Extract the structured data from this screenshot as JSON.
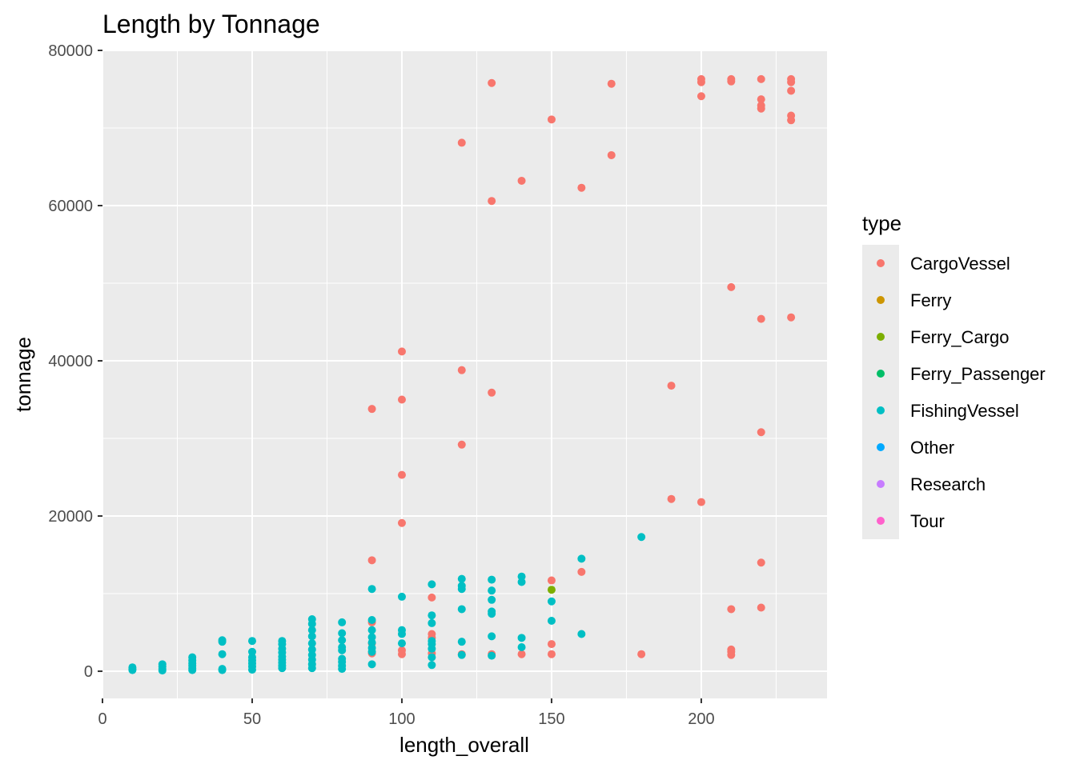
{
  "chart_data": {
    "type": "scatter",
    "title": "Length by Tonnage",
    "xlabel": "length_overall",
    "ylabel": "tonnage",
    "xlim": [
      0,
      242
    ],
    "ylim": [
      -3500,
      80000
    ],
    "x_ticks": [
      0,
      50,
      100,
      150,
      200
    ],
    "y_ticks": [
      0,
      20000,
      40000,
      60000,
      80000
    ],
    "x_tick_labels": [
      "0",
      "50",
      "100",
      "150",
      "200"
    ],
    "y_tick_labels": [
      "0",
      "20000",
      "40000",
      "60000",
      "80000"
    ],
    "grid": true,
    "legend": {
      "title": "type",
      "position": "right"
    },
    "series": [
      {
        "name": "CargoVessel",
        "color": "#F8766D",
        "points": [
          [
            90,
            33800
          ],
          [
            90,
            14300
          ],
          [
            90,
            6300
          ],
          [
            90,
            3600
          ],
          [
            90,
            2300
          ],
          [
            100,
            41200
          ],
          [
            100,
            35000
          ],
          [
            100,
            25300
          ],
          [
            100,
            19100
          ],
          [
            100,
            2700
          ],
          [
            100,
            2200
          ],
          [
            110,
            9500
          ],
          [
            110,
            4800
          ],
          [
            110,
            4300
          ],
          [
            110,
            2300
          ],
          [
            120,
            68100
          ],
          [
            120,
            38800
          ],
          [
            120,
            29200
          ],
          [
            120,
            2200
          ],
          [
            130,
            75800
          ],
          [
            130,
            60600
          ],
          [
            130,
            35900
          ],
          [
            130,
            2200
          ],
          [
            140,
            63200
          ],
          [
            140,
            2200
          ],
          [
            150,
            71100
          ],
          [
            150,
            11700
          ],
          [
            150,
            3500
          ],
          [
            150,
            2200
          ],
          [
            160,
            62300
          ],
          [
            160,
            12800
          ],
          [
            170,
            75700
          ],
          [
            170,
            66500
          ],
          [
            180,
            2200
          ],
          [
            190,
            36800
          ],
          [
            190,
            22200
          ],
          [
            200,
            76300
          ],
          [
            200,
            75900
          ],
          [
            200,
            74100
          ],
          [
            200,
            21800
          ],
          [
            210,
            76300
          ],
          [
            210,
            76000
          ],
          [
            210,
            49500
          ],
          [
            210,
            8000
          ],
          [
            210,
            2800
          ],
          [
            210,
            2500
          ],
          [
            210,
            2100
          ],
          [
            220,
            76300
          ],
          [
            220,
            73700
          ],
          [
            220,
            72900
          ],
          [
            220,
            72500
          ],
          [
            220,
            45400
          ],
          [
            220,
            30800
          ],
          [
            220,
            14000
          ],
          [
            220,
            8200
          ],
          [
            230,
            76300
          ],
          [
            230,
            75900
          ],
          [
            230,
            74800
          ],
          [
            230,
            71600
          ],
          [
            230,
            71000
          ],
          [
            230,
            45600
          ]
        ]
      },
      {
        "name": "Ferry",
        "color": "#CD9600",
        "points": []
      },
      {
        "name": "Ferry_Cargo",
        "color": "#7CAE00",
        "points": [
          [
            150,
            10500
          ]
        ]
      },
      {
        "name": "Ferry_Passenger",
        "color": "#00BE67",
        "points": []
      },
      {
        "name": "FishingVessel",
        "color": "#00BFC4",
        "points": [
          [
            10,
            500
          ],
          [
            10,
            300
          ],
          [
            10,
            150
          ],
          [
            20,
            900
          ],
          [
            20,
            600
          ],
          [
            20,
            300
          ],
          [
            20,
            100
          ],
          [
            30,
            1800
          ],
          [
            30,
            1400
          ],
          [
            30,
            1000
          ],
          [
            30,
            700
          ],
          [
            30,
            400
          ],
          [
            30,
            150
          ],
          [
            40,
            4000
          ],
          [
            40,
            3800
          ],
          [
            40,
            2200
          ],
          [
            40,
            300
          ],
          [
            40,
            150
          ],
          [
            50,
            3900
          ],
          [
            50,
            2500
          ],
          [
            50,
            1800
          ],
          [
            50,
            1400
          ],
          [
            50,
            1000
          ],
          [
            50,
            600
          ],
          [
            50,
            200
          ],
          [
            60,
            3900
          ],
          [
            60,
            3500
          ],
          [
            60,
            2900
          ],
          [
            60,
            2400
          ],
          [
            60,
            1900
          ],
          [
            60,
            1500
          ],
          [
            60,
            1100
          ],
          [
            60,
            700
          ],
          [
            60,
            400
          ],
          [
            70,
            6700
          ],
          [
            70,
            6100
          ],
          [
            70,
            5300
          ],
          [
            70,
            4500
          ],
          [
            70,
            3600
          ],
          [
            70,
            2800
          ],
          [
            70,
            2100
          ],
          [
            70,
            1500
          ],
          [
            70,
            900
          ],
          [
            70,
            400
          ],
          [
            80,
            6300
          ],
          [
            80,
            4900
          ],
          [
            80,
            4000
          ],
          [
            80,
            3100
          ],
          [
            80,
            2700
          ],
          [
            80,
            1600
          ],
          [
            80,
            1200
          ],
          [
            80,
            700
          ],
          [
            80,
            300
          ],
          [
            90,
            10600
          ],
          [
            90,
            6600
          ],
          [
            90,
            5300
          ],
          [
            90,
            4400
          ],
          [
            90,
            3700
          ],
          [
            90,
            3000
          ],
          [
            90,
            2500
          ],
          [
            90,
            900
          ],
          [
            100,
            9600
          ],
          [
            100,
            5300
          ],
          [
            100,
            4800
          ],
          [
            100,
            3600
          ],
          [
            110,
            11200
          ],
          [
            110,
            7200
          ],
          [
            110,
            6200
          ],
          [
            110,
            3900
          ],
          [
            110,
            3500
          ],
          [
            110,
            2900
          ],
          [
            110,
            1800
          ],
          [
            110,
            800
          ],
          [
            120,
            11900
          ],
          [
            120,
            11000
          ],
          [
            120,
            10600
          ],
          [
            120,
            8000
          ],
          [
            120,
            3800
          ],
          [
            120,
            2100
          ],
          [
            130,
            11800
          ],
          [
            130,
            10400
          ],
          [
            130,
            9200
          ],
          [
            130,
            7700
          ],
          [
            130,
            7400
          ],
          [
            130,
            4500
          ],
          [
            130,
            2000
          ],
          [
            140,
            12200
          ],
          [
            140,
            11500
          ],
          [
            140,
            4300
          ],
          [
            140,
            3100
          ],
          [
            150,
            9000
          ],
          [
            150,
            6500
          ],
          [
            160,
            14500
          ],
          [
            160,
            4800
          ],
          [
            180,
            17300
          ]
        ]
      },
      {
        "name": "Other",
        "color": "#00A9FF",
        "points": []
      },
      {
        "name": "Research",
        "color": "#C77CFF",
        "points": []
      },
      {
        "name": "Tour",
        "color": "#FF61CC",
        "points": []
      }
    ]
  }
}
